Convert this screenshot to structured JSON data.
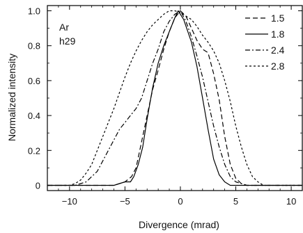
{
  "chart_data": {
    "type": "line",
    "title": "",
    "xlabel": "Divergence (mrad)",
    "ylabel": "Normalized intensity",
    "xlim": [
      -12,
      11
    ],
    "ylim": [
      -0.03,
      1.03
    ],
    "x_ticks": [
      -10,
      -5,
      0,
      5,
      10
    ],
    "y_ticks": [
      0,
      0.2,
      0.4,
      0.6,
      0.8,
      1.0
    ],
    "x_tick_labels": [
      "−10",
      "−5",
      "0",
      "5",
      "10"
    ],
    "y_tick_labels": [
      "0",
      "0.2",
      "0.4",
      "0.6",
      "0.8",
      "1.0"
    ],
    "annotations": [
      "Ar",
      "h29"
    ],
    "grid": false,
    "legend_position": "top-right",
    "series": [
      {
        "name": "1.5",
        "dash": "long-dash",
        "points": [
          [
            -12,
            0
          ],
          [
            -6,
            0
          ],
          [
            -5,
            0.02
          ],
          [
            -4.4,
            0.05
          ],
          [
            -4,
            0.1
          ],
          [
            -3.5,
            0.25
          ],
          [
            -3,
            0.4
          ],
          [
            -2.5,
            0.55
          ],
          [
            -2,
            0.66
          ],
          [
            -1.5,
            0.78
          ],
          [
            -1,
            0.88
          ],
          [
            -0.5,
            0.96
          ],
          [
            0,
            1.0
          ],
          [
            0.5,
            0.97
          ],
          [
            1,
            0.9
          ],
          [
            1.5,
            0.83
          ],
          [
            2,
            0.78
          ],
          [
            2.5,
            0.76
          ],
          [
            3,
            0.64
          ],
          [
            3.5,
            0.49
          ],
          [
            4,
            0.28
          ],
          [
            4.5,
            0.12
          ],
          [
            5,
            0.04
          ],
          [
            5.5,
            0.01
          ],
          [
            6,
            0
          ],
          [
            11,
            0
          ]
        ]
      },
      {
        "name": "1.8",
        "dash": "solid",
        "points": [
          [
            -12,
            0
          ],
          [
            -6,
            0
          ],
          [
            -5.5,
            0.01
          ],
          [
            -5,
            0.02
          ],
          [
            -4.5,
            0.02
          ],
          [
            -4.2,
            0.05
          ],
          [
            -3.8,
            0.12
          ],
          [
            -3.4,
            0.22
          ],
          [
            -3,
            0.38
          ],
          [
            -2.5,
            0.56
          ],
          [
            -2,
            0.7
          ],
          [
            -1.5,
            0.8
          ],
          [
            -1,
            0.88
          ],
          [
            -0.5,
            0.96
          ],
          [
            -0.2,
            1.0
          ],
          [
            0.3,
            0.95
          ],
          [
            1,
            0.82
          ],
          [
            1.5,
            0.68
          ],
          [
            2,
            0.5
          ],
          [
            2.5,
            0.32
          ],
          [
            3,
            0.15
          ],
          [
            3.5,
            0.06
          ],
          [
            4,
            0.02
          ],
          [
            4.5,
            0
          ],
          [
            11,
            0
          ]
        ]
      },
      {
        "name": "2.4",
        "dash": "dash-dot",
        "points": [
          [
            -12,
            0
          ],
          [
            -9.5,
            0
          ],
          [
            -9,
            0.01
          ],
          [
            -8.5,
            0.02
          ],
          [
            -8,
            0.05
          ],
          [
            -7.5,
            0.08
          ],
          [
            -7,
            0.14
          ],
          [
            -6.5,
            0.2
          ],
          [
            -6,
            0.26
          ],
          [
            -5.5,
            0.32
          ],
          [
            -5,
            0.36
          ],
          [
            -4.5,
            0.4
          ],
          [
            -4,
            0.44
          ],
          [
            -3.5,
            0.5
          ],
          [
            -3,
            0.6
          ],
          [
            -2.5,
            0.7
          ],
          [
            -2,
            0.78
          ],
          [
            -1.5,
            0.88
          ],
          [
            -1,
            0.94
          ],
          [
            -0.5,
            0.98
          ],
          [
            0,
            1.0
          ],
          [
            0.5,
            0.94
          ],
          [
            1,
            0.85
          ],
          [
            1.5,
            0.74
          ],
          [
            2,
            0.62
          ],
          [
            2.5,
            0.48
          ],
          [
            3,
            0.34
          ],
          [
            3.5,
            0.22
          ],
          [
            4,
            0.12
          ],
          [
            4.5,
            0.05
          ],
          [
            5,
            0.02
          ],
          [
            5.5,
            0.01
          ],
          [
            6,
            0
          ],
          [
            11,
            0
          ]
        ]
      },
      {
        "name": "2.8",
        "dash": "short-dash",
        "points": [
          [
            -12,
            0
          ],
          [
            -10,
            0
          ],
          [
            -9.5,
            0.01
          ],
          [
            -9,
            0.03
          ],
          [
            -8.5,
            0.07
          ],
          [
            -8,
            0.12
          ],
          [
            -7.5,
            0.2
          ],
          [
            -7,
            0.28
          ],
          [
            -6.5,
            0.36
          ],
          [
            -6,
            0.44
          ],
          [
            -5.5,
            0.53
          ],
          [
            -5,
            0.62
          ],
          [
            -4.5,
            0.7
          ],
          [
            -4,
            0.77
          ],
          [
            -3.5,
            0.83
          ],
          [
            -3,
            0.88
          ],
          [
            -2.5,
            0.92
          ],
          [
            -2,
            0.95
          ],
          [
            -1.5,
            0.98
          ],
          [
            -1,
            1.0
          ],
          [
            -0.5,
            1.0
          ],
          [
            0,
            0.99
          ],
          [
            0.5,
            0.97
          ],
          [
            1,
            0.95
          ],
          [
            1.5,
            0.91
          ],
          [
            2,
            0.86
          ],
          [
            2.5,
            0.82
          ],
          [
            3,
            0.77
          ],
          [
            3.5,
            0.7
          ],
          [
            4,
            0.6
          ],
          [
            4.5,
            0.48
          ],
          [
            5,
            0.34
          ],
          [
            5.5,
            0.22
          ],
          [
            6,
            0.12
          ],
          [
            6.5,
            0.05
          ],
          [
            7,
            0.02
          ],
          [
            7.5,
            0
          ],
          [
            11,
            0
          ]
        ]
      }
    ]
  }
}
